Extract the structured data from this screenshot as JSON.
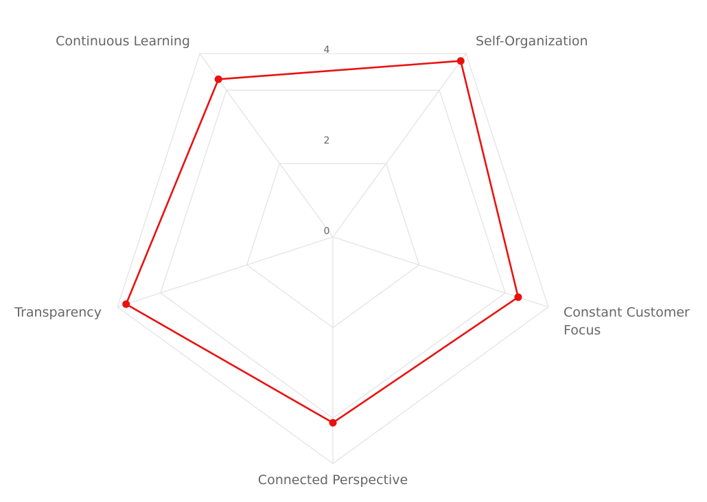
{
  "chart_data": {
    "type": "radar",
    "categories": [
      "Self-Organization",
      "Constant Customer Focus",
      "Connected Perspective",
      "Transparency",
      "Continuous Learning"
    ],
    "category_lines": [
      [
        "Self-Organization"
      ],
      [
        "Constant Customer",
        "Focus"
      ],
      [
        "Connected Perspective"
      ],
      [
        "Transparency"
      ],
      [
        "Continuous Learning"
      ]
    ],
    "r_ticks": [
      "0",
      "2",
      "4"
    ],
    "r_range": [
      0,
      5
    ],
    "grid_levels": [
      2,
      4,
      5
    ],
    "series": [
      {
        "values": [
          4.8,
          4.3,
          4.1,
          4.8,
          4.3
        ],
        "color": "#e8110f"
      }
    ],
    "grid": true
  }
}
